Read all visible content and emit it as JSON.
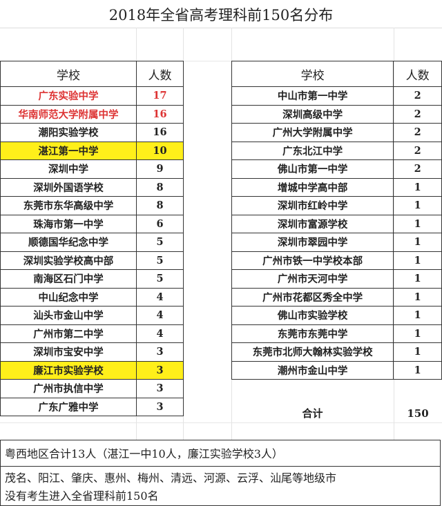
{
  "title": "2018年全省高考理科前150名分布",
  "headers": {
    "school": "学校",
    "count": "人数"
  },
  "left_rows": [
    {
      "school": "广东实验中学",
      "count": "17",
      "style": "red"
    },
    {
      "school": "华南师范大学附属中学",
      "count": "16",
      "style": "red"
    },
    {
      "school": "潮阳实验学校",
      "count": "16"
    },
    {
      "school": "湛江第一中学",
      "count": "10",
      "style": "highlight"
    },
    {
      "school": "深圳中学",
      "count": "9"
    },
    {
      "school": "深圳外国语学校",
      "count": "8"
    },
    {
      "school": "东莞市东华高级中学",
      "count": "8"
    },
    {
      "school": "珠海市第一中学",
      "count": "6"
    },
    {
      "school": "顺德国华纪念中学",
      "count": "5"
    },
    {
      "school": "深圳实验学校高中部",
      "count": "5"
    },
    {
      "school": "南海区石门中学",
      "count": "5"
    },
    {
      "school": "中山纪念中学",
      "count": "4"
    },
    {
      "school": "汕头市金山中学",
      "count": "4"
    },
    {
      "school": "广州市第二中学",
      "count": "4"
    },
    {
      "school": "深圳市宝安中学",
      "count": "3"
    },
    {
      "school": "廉江市实验学校",
      "count": "3",
      "style": "highlight"
    },
    {
      "school": "广州市执信中学",
      "count": "3"
    },
    {
      "school": "广东广雅中学",
      "count": "3"
    }
  ],
  "right_rows": [
    {
      "school": "中山市第一中学",
      "count": "2"
    },
    {
      "school": "深圳高级中学",
      "count": "2"
    },
    {
      "school": "广州大学附属中学",
      "count": "2"
    },
    {
      "school": "广东北江中学",
      "count": "2"
    },
    {
      "school": "佛山市第一中学",
      "count": "2"
    },
    {
      "school": "增城中学高中部",
      "count": "1"
    },
    {
      "school": "深圳市红岭中学",
      "count": "1"
    },
    {
      "school": "深圳市富源学校",
      "count": "1"
    },
    {
      "school": "深圳市翠园中学",
      "count": "1"
    },
    {
      "school": "广州市铁一中学校本部",
      "count": "1"
    },
    {
      "school": "广州市天河中学",
      "count": "1"
    },
    {
      "school": "广州市花都区秀全中学",
      "count": "1"
    },
    {
      "school": "佛山市实验学校",
      "count": "1"
    },
    {
      "school": "东莞市东莞中学",
      "count": "1"
    },
    {
      "school": "东莞市北师大翰林实验学校",
      "count": "1"
    },
    {
      "school": "潮州市金山中学",
      "count": "1"
    }
  ],
  "total": {
    "label": "合计",
    "value": "150"
  },
  "notes": [
    "粤西地区合计13人（湛江一中10人，廉江实验学校3人）",
    "茂名、阳江、肇庆、惠州、梅州、清远、河源、云浮、汕尾等地级市",
    "没有考生进入全省理科前150名"
  ],
  "colors": {
    "red_text": "#dd3333",
    "highlight": "#ffef1a"
  }
}
